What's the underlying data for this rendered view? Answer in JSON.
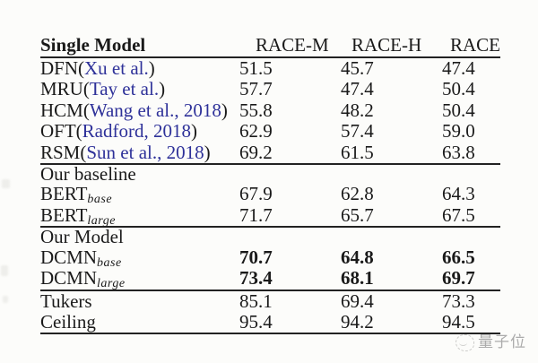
{
  "colors": {
    "background": "#fcfcfa",
    "text": "#1a1a1a",
    "rule": "#222222",
    "citation_blue": "#2e3199",
    "watermark_gray": "#ababab"
  },
  "table": {
    "header": {
      "model_col": "Single Model",
      "race_m": "RACE-M",
      "race_h": "RACE-H",
      "race": "RACE"
    },
    "cited_rows": [
      {
        "prefix": "DFN(",
        "cite": "Xu et al.",
        "suffix": ")",
        "m": "51.5",
        "h": "45.7",
        "r": "47.4"
      },
      {
        "prefix": "MRU(",
        "cite": "Tay et al.",
        "suffix": ")",
        "m": "57.7",
        "h": "47.4",
        "r": "50.4"
      },
      {
        "prefix": "HCM(",
        "cite": "Wang et al., 2018",
        "suffix": ")",
        "m": "55.8",
        "h": "48.2",
        "r": "50.4"
      },
      {
        "prefix": "OFT(",
        "cite": "Radford, 2018",
        "suffix": ")",
        "m": "62.9",
        "h": "57.4",
        "r": "59.0"
      },
      {
        "prefix": "RSM(",
        "cite": "Sun et al., 2018",
        "suffix": ")",
        "m": "69.2",
        "h": "61.5",
        "r": "63.8"
      }
    ],
    "baseline_section_label": "Our baseline",
    "baseline_rows": [
      {
        "name": "BERT",
        "sub": "base",
        "m": "67.9",
        "h": "62.8",
        "r": "64.3"
      },
      {
        "name": "BERT",
        "sub": "large",
        "m": "71.7",
        "h": "65.7",
        "r": "67.5"
      }
    ],
    "model_section_label": "Our Model",
    "model_rows": [
      {
        "name": "DCMN",
        "sub": "base",
        "m": "70.7",
        "h": "64.8",
        "r": "66.5"
      },
      {
        "name": "DCMN",
        "sub": "large",
        "m": "73.4",
        "h": "68.1",
        "r": "69.7"
      }
    ],
    "footer_rows": [
      {
        "label": "Tukers",
        "m": "85.1",
        "h": "69.4",
        "r": "73.3"
      },
      {
        "label": "Ceiling",
        "m": "95.4",
        "h": "94.2",
        "r": "94.5"
      }
    ]
  },
  "watermark": {
    "text": "量子位",
    "icon": "qbitai-logo-icon"
  }
}
